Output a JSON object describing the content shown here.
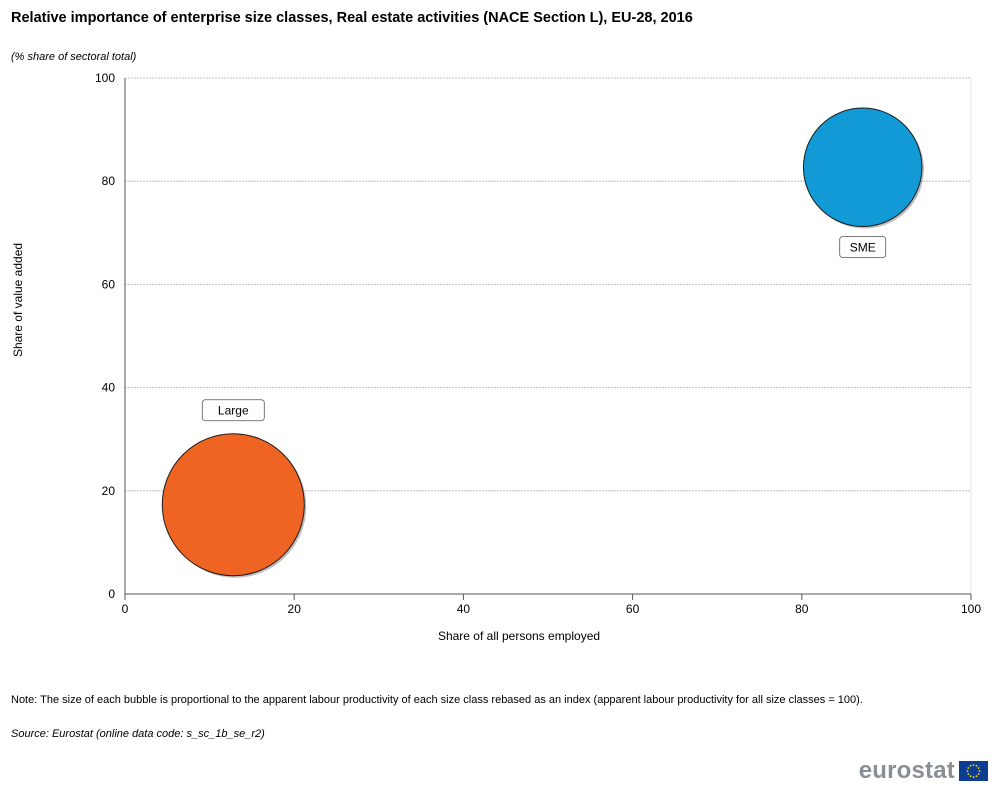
{
  "title": "Relative importance of enterprise size classes, Real estate activities (NACE Section L), EU-28, 2016",
  "subtitle": "(% share of sectoral total)",
  "note": "Note: The size of each bubble is proportional to the apparent labour productivity of each size class rebased as an index (apparent labour productivity for all size classes = 100).",
  "source": "Source: Eurostat (online data code: s_sc_1b_se_r2)",
  "logo_text": "eurostat",
  "chart_data": {
    "type": "scatter",
    "title": "Relative importance of enterprise size classes, Real estate activities (NACE Section L), EU-28, 2016",
    "xlabel": "Share of all persons employed",
    "ylabel": "Share of value added",
    "xlim": [
      0,
      100
    ],
    "ylim": [
      0,
      100
    ],
    "xticks": [
      0,
      20,
      40,
      60,
      80,
      100
    ],
    "yticks": [
      0,
      20,
      40,
      60,
      80,
      100
    ],
    "grid": "horizontal dashed",
    "series": [
      {
        "name": "SME",
        "x": 87.2,
        "y": 82.7,
        "size": 94,
        "color": "#129ad6"
      },
      {
        "name": "Large",
        "x": 12.8,
        "y": 17.3,
        "size": 135,
        "color": "#ef6423"
      }
    ]
  }
}
